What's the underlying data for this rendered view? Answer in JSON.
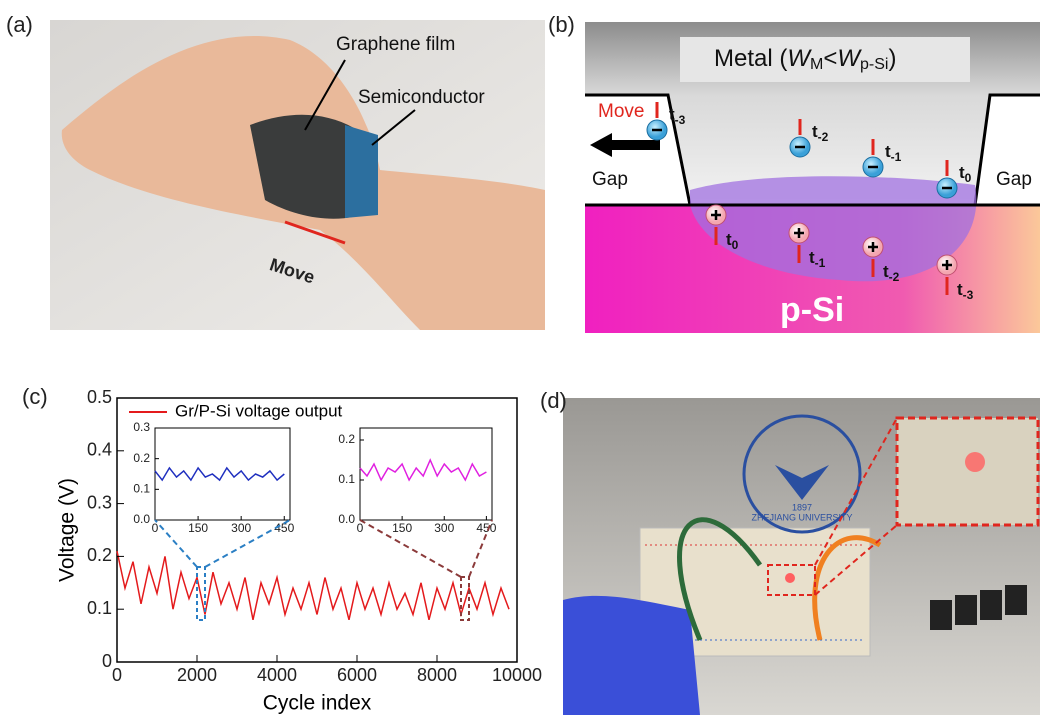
{
  "panels": {
    "a": {
      "label": "(a)",
      "graphene": "Graphene film",
      "semiconductor": "Semiconductor",
      "move": "Move"
    },
    "b": {
      "label": "(b)",
      "metal": {
        "prefix": "Metal (",
        "w1": "W",
        "sub1": "M",
        "lt": "<",
        "w2": "W",
        "sub2": "p-Si",
        "suffix": ")"
      },
      "move": "Move",
      "gap_left": "Gap",
      "gap_right": "Gap",
      "psi": "p-Si",
      "electrons": [
        {
          "t": "t",
          "sub": "-3"
        },
        {
          "t": "t",
          "sub": "-2"
        },
        {
          "t": "t",
          "sub": "-1"
        },
        {
          "t": "t",
          "sub": "0"
        }
      ],
      "holes": [
        {
          "t": "t",
          "sub": "0"
        },
        {
          "t": "t",
          "sub": "-1"
        },
        {
          "t": "t",
          "sub": "-2"
        },
        {
          "t": "t",
          "sub": "-3"
        }
      ]
    },
    "c": {
      "label": "(c)"
    },
    "d": {
      "label": "(d)",
      "logo_text": "ZHEJIANG UNIVERSITY",
      "logo_year": "1897"
    }
  },
  "chart_data": [
    {
      "type": "line",
      "xlabel": "Cycle index",
      "ylabel": "Voltage (V)",
      "xlim": [
        0,
        10000
      ],
      "ylim": [
        0,
        0.5
      ],
      "xticks": [
        0,
        2000,
        4000,
        6000,
        8000,
        10000
      ],
      "yticks": [
        0,
        0.1,
        0.2,
        0.3,
        0.4,
        0.5
      ],
      "x": [
        0,
        200,
        400,
        600,
        800,
        1000,
        1200,
        1400,
        1600,
        1800,
        2000,
        2200,
        2400,
        2600,
        2800,
        3000,
        3200,
        3400,
        3600,
        3800,
        4000,
        4200,
        4400,
        4600,
        4800,
        5000,
        5200,
        5400,
        5600,
        5800,
        6000,
        6200,
        6400,
        6600,
        6800,
        7000,
        7200,
        7400,
        7600,
        7800,
        8000,
        8200,
        8400,
        8600,
        8800,
        9000,
        9200,
        9400,
        9600,
        9800
      ],
      "series": [
        {
          "name": "Gr/P-Si voltage output",
          "color": "#e41a1c",
          "values": [
            0.21,
            0.14,
            0.19,
            0.11,
            0.18,
            0.13,
            0.2,
            0.1,
            0.17,
            0.12,
            0.16,
            0.09,
            0.17,
            0.11,
            0.15,
            0.1,
            0.16,
            0.08,
            0.15,
            0.11,
            0.16,
            0.09,
            0.14,
            0.1,
            0.15,
            0.09,
            0.16,
            0.1,
            0.14,
            0.08,
            0.15,
            0.1,
            0.14,
            0.09,
            0.15,
            0.1,
            0.13,
            0.09,
            0.15,
            0.08,
            0.14,
            0.1,
            0.15,
            0.09,
            0.14,
            0.1,
            0.15,
            0.09,
            0.14,
            0.1
          ]
        }
      ]
    },
    {
      "type": "line",
      "xlim": [
        0,
        470
      ],
      "ylim": [
        0,
        0.3
      ],
      "xticks": [
        0,
        150,
        300,
        450
      ],
      "yticks": [
        {
          "value": 0,
          "label": "0.0"
        },
        0.1,
        0.2,
        0.3
      ],
      "x": [
        0,
        25,
        50,
        75,
        100,
        125,
        150,
        175,
        200,
        225,
        250,
        275,
        300,
        325,
        350,
        375,
        400,
        425,
        450
      ],
      "series": [
        {
          "name": null,
          "color": "#1f2fbf",
          "values": [
            0.16,
            0.13,
            0.17,
            0.14,
            0.16,
            0.13,
            0.17,
            0.14,
            0.15,
            0.13,
            0.17,
            0.14,
            0.16,
            0.13,
            0.15,
            0.14,
            0.16,
            0.13,
            0.15
          ]
        }
      ]
    },
    {
      "type": "line",
      "xlim": [
        0,
        470
      ],
      "ylim": [
        0,
        0.23
      ],
      "xticks": [
        0,
        150,
        300,
        450
      ],
      "yticks": [
        {
          "value": 0,
          "label": "0.0"
        },
        0.1,
        0.2
      ],
      "x": [
        0,
        25,
        50,
        75,
        100,
        125,
        150,
        175,
        200,
        225,
        250,
        275,
        300,
        325,
        350,
        375,
        400,
        425,
        450
      ],
      "series": [
        {
          "name": null,
          "color": "#e020e0",
          "values": [
            0.13,
            0.11,
            0.14,
            0.1,
            0.13,
            0.12,
            0.14,
            0.1,
            0.13,
            0.11,
            0.15,
            0.11,
            0.14,
            0.12,
            0.13,
            0.1,
            0.14,
            0.11,
            0.12
          ]
        }
      ]
    }
  ]
}
